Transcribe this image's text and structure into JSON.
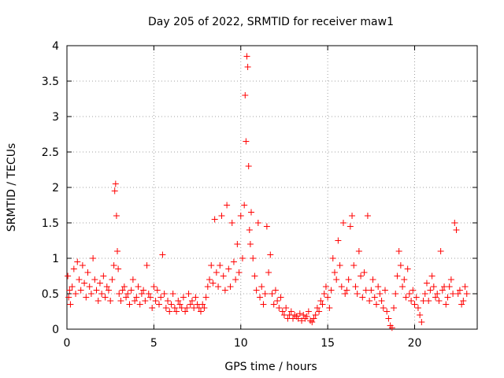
{
  "chart_data": {
    "type": "scatter",
    "title": "Day 205 of 2022, SRMTID for receiver maw1",
    "xlabel": "GPS time / hours",
    "ylabel": "SRMTID / TECUs",
    "xlim": [
      0,
      23.6
    ],
    "ylim": [
      0,
      4
    ],
    "x_ticks": [
      0,
      5,
      10,
      15,
      20
    ],
    "y_ticks": [
      0,
      0.5,
      1,
      1.5,
      2,
      2.5,
      3,
      3.5,
      4
    ],
    "x_tick_labels": [
      "0",
      "5",
      "10",
      "15",
      "20"
    ],
    "y_tick_labels": [
      "0",
      "0.5",
      "1",
      "1.5",
      "2",
      "2.5",
      "3",
      "3.5",
      "4"
    ],
    "grid": true,
    "marker": "+",
    "series_color": "#ff0000",
    "series": [
      {
        "name": "SRMTID",
        "x": [
          0.05,
          0.1,
          0.15,
          0.2,
          0.3,
          0.4,
          0.5,
          0.6,
          0.7,
          0.8,
          0.9,
          1.0,
          1.1,
          1.2,
          1.3,
          1.4,
          1.5,
          1.6,
          1.7,
          1.8,
          1.9,
          2.0,
          2.1,
          2.2,
          2.3,
          2.4,
          2.5,
          2.6,
          2.7,
          2.75,
          2.8,
          2.85,
          2.9,
          2.95,
          3.0,
          3.1,
          3.2,
          3.3,
          3.4,
          3.5,
          3.6,
          3.7,
          3.8,
          3.9,
          4.0,
          4.1,
          4.2,
          4.3,
          4.4,
          4.5,
          4.6,
          4.7,
          4.8,
          4.9,
          5.0,
          5.1,
          5.2,
          5.3,
          5.4,
          5.5,
          5.6,
          5.7,
          5.8,
          5.9,
          6.0,
          6.1,
          6.2,
          6.3,
          6.4,
          6.5,
          6.6,
          6.7,
          6.8,
          6.9,
          7.0,
          7.1,
          7.2,
          7.3,
          7.4,
          7.5,
          7.6,
          7.7,
          7.8,
          7.9,
          8.0,
          8.1,
          8.2,
          8.3,
          8.4,
          8.5,
          8.6,
          8.7,
          8.8,
          8.9,
          9.0,
          9.1,
          9.2,
          9.3,
          9.4,
          9.5,
          9.6,
          9.7,
          9.8,
          9.9,
          10.0,
          10.1,
          10.2,
          10.25,
          10.3,
          10.35,
          10.4,
          10.45,
          10.5,
          10.55,
          10.6,
          10.7,
          10.8,
          10.9,
          11.0,
          11.1,
          11.2,
          11.3,
          11.4,
          11.5,
          11.6,
          11.7,
          11.8,
          11.9,
          12.0,
          12.1,
          12.2,
          12.3,
          12.4,
          12.5,
          12.6,
          12.7,
          12.8,
          12.9,
          13.0,
          13.1,
          13.2,
          13.3,
          13.4,
          13.5,
          13.6,
          13.7,
          13.8,
          13.9,
          14.0,
          14.1,
          14.2,
          14.3,
          14.4,
          14.5,
          14.6,
          14.7,
          14.8,
          14.9,
          15.0,
          15.1,
          15.2,
          15.3,
          15.4,
          15.5,
          15.6,
          15.7,
          15.8,
          15.9,
          16.0,
          16.1,
          16.2,
          16.3,
          16.4,
          16.5,
          16.6,
          16.7,
          16.8,
          16.9,
          17.0,
          17.1,
          17.2,
          17.3,
          17.4,
          17.5,
          17.6,
          17.7,
          17.8,
          17.9,
          18.0,
          18.1,
          18.2,
          18.3,
          18.4,
          18.5,
          18.6,
          18.7,
          18.8,
          18.9,
          19.0,
          19.1,
          19.2,
          19.3,
          19.4,
          19.5,
          19.6,
          19.7,
          19.8,
          19.9,
          20.0,
          20.1,
          20.2,
          20.3,
          20.4,
          20.5,
          20.6,
          20.7,
          20.8,
          20.9,
          21.0,
          21.1,
          21.2,
          21.3,
          21.4,
          21.5,
          21.6,
          21.7,
          21.8,
          21.9,
          22.0,
          22.1,
          22.2,
          22.3,
          22.4,
          22.5,
          22.6,
          22.7,
          22.8,
          22.9,
          23.0
        ],
        "y": [
          0.75,
          0.45,
          0.55,
          0.35,
          0.6,
          0.85,
          0.5,
          0.95,
          0.7,
          0.55,
          0.9,
          0.65,
          0.45,
          0.8,
          0.6,
          0.5,
          1.0,
          0.7,
          0.55,
          0.4,
          0.65,
          0.5,
          0.75,
          0.45,
          0.6,
          0.55,
          0.4,
          0.7,
          0.9,
          1.95,
          2.05,
          1.6,
          1.1,
          0.85,
          0.5,
          0.4,
          0.55,
          0.6,
          0.45,
          0.5,
          0.35,
          0.55,
          0.7,
          0.4,
          0.45,
          0.6,
          0.35,
          0.5,
          0.55,
          0.4,
          0.9,
          0.5,
          0.45,
          0.3,
          0.6,
          0.4,
          0.55,
          0.35,
          0.45,
          1.05,
          0.5,
          0.3,
          0.4,
          0.25,
          0.35,
          0.5,
          0.3,
          0.25,
          0.4,
          0.35,
          0.3,
          0.45,
          0.25,
          0.3,
          0.5,
          0.35,
          0.4,
          0.3,
          0.45,
          0.35,
          0.3,
          0.25,
          0.35,
          0.3,
          0.45,
          0.6,
          0.7,
          0.9,
          0.65,
          1.55,
          0.8,
          0.6,
          0.9,
          1.6,
          0.75,
          0.55,
          1.75,
          0.85,
          0.6,
          1.5,
          0.95,
          0.7,
          1.2,
          0.8,
          1.6,
          1.0,
          1.75,
          3.3,
          2.65,
          3.85,
          3.7,
          2.3,
          1.4,
          1.2,
          1.65,
          1.0,
          0.75,
          0.55,
          1.5,
          0.45,
          0.6,
          0.35,
          0.5,
          1.45,
          0.8,
          1.05,
          0.5,
          0.35,
          0.55,
          0.4,
          0.3,
          0.45,
          0.25,
          0.2,
          0.3,
          0.15,
          0.2,
          0.25,
          0.15,
          0.2,
          0.18,
          0.15,
          0.22,
          0.12,
          0.2,
          0.15,
          0.18,
          0.25,
          0.12,
          0.1,
          0.15,
          0.2,
          0.3,
          0.25,
          0.4,
          0.35,
          0.5,
          0.6,
          0.45,
          0.3,
          0.55,
          1.0,
          0.8,
          0.7,
          1.25,
          0.9,
          0.6,
          1.5,
          0.5,
          0.55,
          0.7,
          1.45,
          1.6,
          0.9,
          0.6,
          0.5,
          1.1,
          0.75,
          0.45,
          0.8,
          0.55,
          1.6,
          0.4,
          0.55,
          0.7,
          0.45,
          0.35,
          0.6,
          0.5,
          0.4,
          0.3,
          0.55,
          0.25,
          0.15,
          0.05,
          0.02,
          0.3,
          0.5,
          0.75,
          1.1,
          0.9,
          0.6,
          0.7,
          0.45,
          0.85,
          0.5,
          0.4,
          0.55,
          0.35,
          0.45,
          0.3,
          0.2,
          0.1,
          0.4,
          0.5,
          0.65,
          0.4,
          0.55,
          0.75,
          0.6,
          0.45,
          0.5,
          0.4,
          1.1,
          0.55,
          0.6,
          0.35,
          0.45,
          0.6,
          0.7,
          0.5,
          1.5,
          1.4,
          0.5,
          0.55,
          0.35,
          0.4,
          0.6,
          0.5
        ]
      }
    ]
  }
}
